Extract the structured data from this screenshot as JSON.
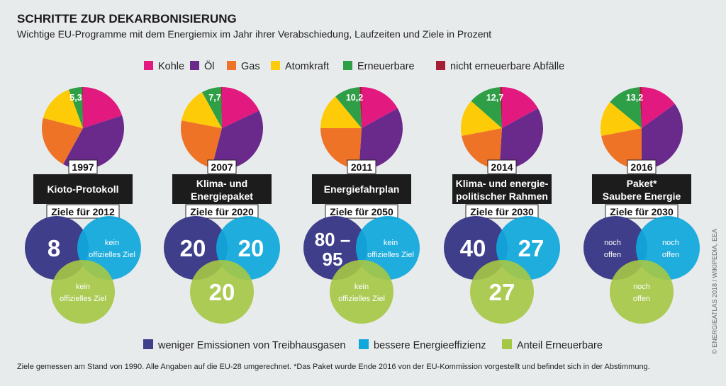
{
  "header": {
    "title": "SCHRITTE ZUR DEKARBONISIERUNG",
    "subtitle": "Wichtige EU-Programme mit dem Energiemix im Jahr ihrer Verabschiedung, Laufzeiten und Ziele in Prozent"
  },
  "colors": {
    "Kohle": "#e2197e",
    "Öl": "#6a2a8c",
    "Gas": "#ee7326",
    "Atomkraft": "#fecb08",
    "Erneuerbare": "#2e9f46",
    "nicht erneuerbare Abfälle": "#a51e36",
    "emissions": "#3f3e8a",
    "efficiency": "#0fa8dc",
    "renewables": "#a5c844"
  },
  "legend_top": [
    "Kohle",
    "Öl",
    "Gas",
    "Atomkraft",
    "Erneuerbare",
    "nicht erneuerbare Abfälle"
  ],
  "legend_bottom": [
    "weniger Emissionen von Treibhausgasen",
    "bessere Energieeffizienz",
    "Anteil Erneuerbare"
  ],
  "chart_data": {
    "type": "pie",
    "series_order": [
      "Kohle",
      "Öl",
      "Gas",
      "Atomkraft",
      "Erneuerbare",
      "nicht erneuerbare Abfälle"
    ],
    "pies": [
      {
        "year": "1997",
        "values": [
          20,
          38,
          21,
          15.4,
          5.3,
          0.3
        ],
        "label": "5,3"
      },
      {
        "year": "2007",
        "values": [
          18,
          36,
          24,
          14,
          7.7,
          0.3
        ],
        "label": "7,7"
      },
      {
        "year": "2011",
        "values": [
          17,
          34,
          24,
          14,
          10.2,
          0.8
        ],
        "label": "10,2"
      },
      {
        "year": "2014",
        "values": [
          17,
          34,
          21,
          14.5,
          12.7,
          0.8
        ],
        "label": "12,7"
      },
      {
        "year": "2016",
        "values": [
          15,
          35,
          22,
          14,
          13.2,
          0.8
        ],
        "label": "13,2"
      }
    ]
  },
  "programs": [
    {
      "year": "1997",
      "name": [
        "Kioto-Protokoll"
      ],
      "target": "Ziele für 2012",
      "emissions": [
        "8"
      ],
      "efficiency": [
        "kein",
        "offizielles Ziel"
      ],
      "renewables": [
        "kein",
        "offizielles Ziel"
      ]
    },
    {
      "year": "2007",
      "name": [
        "Klima- und",
        "Energiepaket"
      ],
      "target": "Ziele für 2020",
      "emissions": [
        "20"
      ],
      "efficiency": [
        "20"
      ],
      "renewables": [
        "20"
      ]
    },
    {
      "year": "2011",
      "name": [
        "Energiefahrplan"
      ],
      "target": "Ziele für 2050",
      "emissions": [
        "80 –",
        "95"
      ],
      "efficiency": [
        "kein",
        "offizielles Ziel"
      ],
      "renewables": [
        "kein",
        "offizielles Ziel"
      ]
    },
    {
      "year": "2014",
      "name": [
        "Klima- und energie-",
        "politischer Rahmen"
      ],
      "target": "Ziele für 2030",
      "emissions": [
        "40"
      ],
      "efficiency": [
        "27"
      ],
      "renewables": [
        "27"
      ]
    },
    {
      "year": "2016",
      "name": [
        "Paket*",
        "Saubere Energie"
      ],
      "target": "Ziele für 2030",
      "emissions": [
        "noch",
        "offen"
      ],
      "efficiency": [
        "noch",
        "offen"
      ],
      "renewables": [
        "noch",
        "offen"
      ]
    }
  ],
  "footnote": "Ziele gemessen am Stand von 1990. Alle Angaben auf die EU-28 umgerechnet.  *Das Paket wurde Ende 2016 von der EU-Kommission vorgestellt und befindet sich in der Abstimmung.",
  "credit": "© ENERGIEATLAS 2018 / WIKIPEDIA, EEA"
}
